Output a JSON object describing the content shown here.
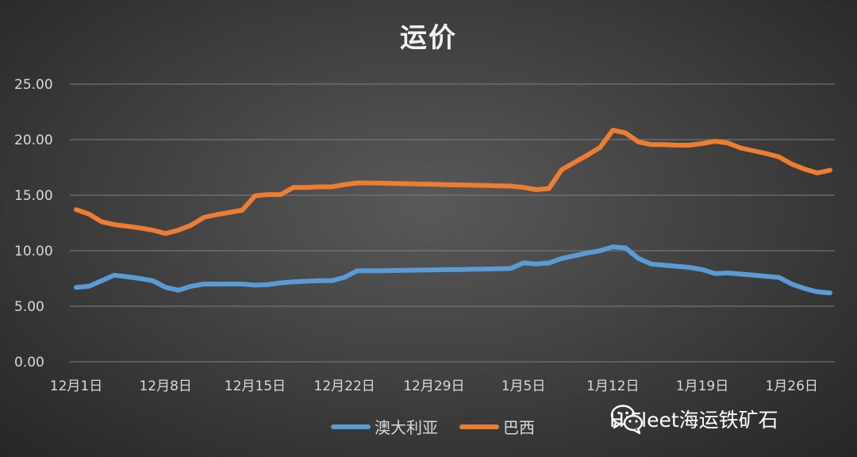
{
  "chart_data": {
    "type": "line",
    "title": "运价",
    "ylim": [
      0,
      25
    ],
    "y_ticks": [
      "0.00",
      "5.00",
      "10.00",
      "15.00",
      "20.00",
      "25.00"
    ],
    "x_tick_labels": [
      "12月1日",
      "12月8日",
      "12月15日",
      "12月22日",
      "12月29日",
      "1月5日",
      "1月12日",
      "1月19日",
      "1月26日"
    ],
    "grid": true,
    "legend_position": "bottom",
    "series": [
      {
        "name": "澳大利亚",
        "color": "#5b9bd5",
        "points": [
          [
            0,
            6.7
          ],
          [
            1,
            6.8
          ],
          [
            2,
            7.3
          ],
          [
            3,
            7.8
          ],
          [
            4,
            7.65
          ],
          [
            5,
            7.5
          ],
          [
            6,
            7.3
          ],
          [
            7,
            6.7
          ],
          [
            8,
            6.45
          ],
          [
            9,
            6.8
          ],
          [
            10,
            7.0
          ],
          [
            11,
            7.0
          ],
          [
            12,
            7.0
          ],
          [
            13,
            7.0
          ],
          [
            14,
            6.9
          ],
          [
            15,
            6.95
          ],
          [
            16,
            7.1
          ],
          [
            17,
            7.2
          ],
          [
            18,
            7.25
          ],
          [
            19,
            7.3
          ],
          [
            20,
            7.3
          ],
          [
            21,
            7.6
          ],
          [
            22,
            8.2
          ],
          [
            23,
            8.2
          ],
          [
            24,
            8.2
          ],
          [
            25,
            8.22
          ],
          [
            26,
            8.24
          ],
          [
            27,
            8.26
          ],
          [
            28,
            8.28
          ],
          [
            29,
            8.3
          ],
          [
            30,
            8.3
          ],
          [
            31,
            8.33
          ],
          [
            32,
            8.35
          ],
          [
            33,
            8.37
          ],
          [
            34,
            8.4
          ],
          [
            35,
            8.9
          ],
          [
            36,
            8.8
          ],
          [
            37,
            8.9
          ],
          [
            38,
            9.3
          ],
          [
            39,
            9.55
          ],
          [
            40,
            9.8
          ],
          [
            41,
            10.0
          ],
          [
            42,
            10.35
          ],
          [
            43,
            10.25
          ],
          [
            44,
            9.3
          ],
          [
            45,
            8.8
          ],
          [
            46,
            8.7
          ],
          [
            47,
            8.6
          ],
          [
            48,
            8.5
          ],
          [
            49,
            8.3
          ],
          [
            50,
            7.95
          ],
          [
            51,
            8.0
          ],
          [
            52,
            7.9
          ],
          [
            53,
            7.8
          ],
          [
            54,
            7.7
          ],
          [
            55,
            7.6
          ],
          [
            56,
            7.0
          ],
          [
            57,
            6.6
          ],
          [
            58,
            6.3
          ],
          [
            59,
            6.2
          ]
        ]
      },
      {
        "name": "巴西",
        "color": "#ed7d31",
        "points": [
          [
            0,
            13.7
          ],
          [
            1,
            13.3
          ],
          [
            2,
            12.6
          ],
          [
            3,
            12.35
          ],
          [
            4,
            12.2
          ],
          [
            5,
            12.05
          ],
          [
            6,
            11.85
          ],
          [
            7,
            11.55
          ],
          [
            8,
            11.85
          ],
          [
            9,
            12.3
          ],
          [
            10,
            13.0
          ],
          [
            11,
            13.25
          ],
          [
            12,
            13.45
          ],
          [
            13,
            13.65
          ],
          [
            14,
            14.95
          ],
          [
            15,
            15.05
          ],
          [
            16,
            15.05
          ],
          [
            17,
            15.7
          ],
          [
            18,
            15.7
          ],
          [
            19,
            15.75
          ],
          [
            20,
            15.75
          ],
          [
            21,
            15.95
          ],
          [
            22,
            16.1
          ],
          [
            23,
            16.1
          ],
          [
            24,
            16.08
          ],
          [
            25,
            16.06
          ],
          [
            26,
            16.03
          ],
          [
            27,
            16.0
          ],
          [
            28,
            15.98
          ],
          [
            29,
            15.95
          ],
          [
            30,
            15.92
          ],
          [
            31,
            15.9
          ],
          [
            32,
            15.87
          ],
          [
            33,
            15.84
          ],
          [
            34,
            15.82
          ],
          [
            35,
            15.7
          ],
          [
            36,
            15.5
          ],
          [
            37,
            15.6
          ],
          [
            38,
            17.3
          ],
          [
            39,
            17.95
          ],
          [
            40,
            18.6
          ],
          [
            41,
            19.3
          ],
          [
            42,
            20.85
          ],
          [
            43,
            20.6
          ],
          [
            44,
            19.8
          ],
          [
            45,
            19.55
          ],
          [
            46,
            19.55
          ],
          [
            47,
            19.5
          ],
          [
            48,
            19.5
          ],
          [
            49,
            19.65
          ],
          [
            50,
            19.85
          ],
          [
            51,
            19.7
          ],
          [
            52,
            19.25
          ],
          [
            53,
            19.0
          ],
          [
            54,
            18.75
          ],
          [
            55,
            18.45
          ],
          [
            56,
            17.8
          ],
          [
            57,
            17.35
          ],
          [
            58,
            17.0
          ],
          [
            59,
            17.25
          ]
        ]
      }
    ]
  },
  "watermark": {
    "icon": "wechat-icon",
    "text": "HiFleet海运铁矿石"
  }
}
